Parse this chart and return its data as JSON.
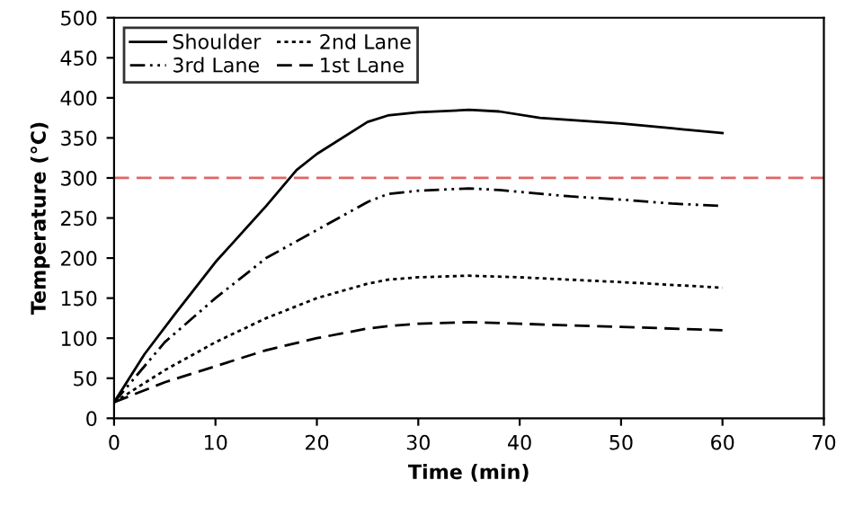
{
  "chart_data": {
    "type": "line",
    "xlabel": "Time (min)",
    "ylabel": "Temperature (°C)",
    "xlim": [
      0,
      70
    ],
    "xticks": [
      0,
      10,
      20,
      30,
      40,
      50,
      60,
      70
    ],
    "ylim": [
      0,
      500
    ],
    "yticks": [
      0,
      50,
      100,
      150,
      200,
      250,
      300,
      350,
      400,
      450,
      500
    ],
    "grid": false,
    "legend": "top left",
    "marker": "none",
    "ref_lines": [
      {
        "axis": "y",
        "value": 300,
        "color": "#e06666",
        "line_style": "dashed"
      }
    ],
    "series": [
      {
        "name": "Shoulder",
        "color": "#000000",
        "line_style": "solid",
        "x": [
          0,
          3,
          6,
          10,
          15,
          18,
          20,
          25,
          27,
          30,
          35,
          38,
          42,
          50,
          55,
          60
        ],
        "values": [
          20,
          80,
          130,
          195,
          265,
          310,
          330,
          370,
          378,
          382,
          385,
          383,
          375,
          368,
          362,
          356
        ]
      },
      {
        "name": "3rd Lane",
        "color": "#000000",
        "line_style": "dashdot",
        "x": [
          0,
          5,
          10,
          15,
          20,
          25,
          27,
          30,
          35,
          38,
          45,
          50,
          55,
          60
        ],
        "values": [
          20,
          95,
          150,
          200,
          235,
          270,
          280,
          284,
          287,
          285,
          277,
          273,
          268,
          265
        ]
      },
      {
        "name": "2nd Lane",
        "color": "#000000",
        "line_style": "dotted",
        "x": [
          0,
          5,
          10,
          15,
          20,
          25,
          27,
          30,
          35,
          40,
          50,
          60
        ],
        "values": [
          20,
          60,
          95,
          125,
          150,
          168,
          173,
          176,
          178,
          176,
          170,
          163
        ]
      },
      {
        "name": "1st Lane",
        "color": "#000000",
        "line_style": "dashed",
        "x": [
          0,
          5,
          10,
          15,
          20,
          25,
          27,
          30,
          35,
          40,
          50,
          60
        ],
        "values": [
          20,
          45,
          65,
          85,
          100,
          112,
          115,
          118,
          120,
          118,
          114,
          110
        ]
      }
    ]
  }
}
